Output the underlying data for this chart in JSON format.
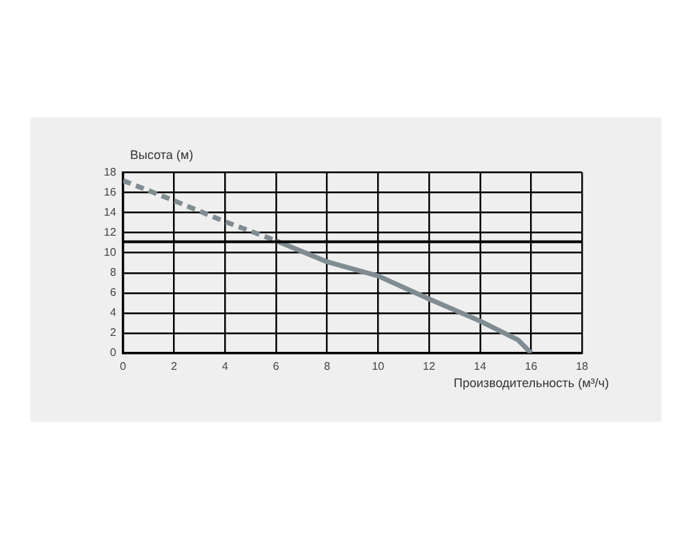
{
  "chart_data": {
    "type": "line",
    "xlabel": "Производительность (м³/ч)",
    "ylabel": "Высота (м)",
    "xlim": [
      0,
      18
    ],
    "xticks": [
      0,
      2,
      4,
      6,
      8,
      10,
      12,
      14,
      16,
      18
    ],
    "ylim": [
      0,
      18
    ],
    "yticks": [
      0,
      2,
      4,
      6,
      8,
      10,
      12,
      14,
      16,
      18
    ],
    "grid": true,
    "marker": "none",
    "series": [
      {
        "color": "#7f8c92",
        "line_style": "dashed",
        "x": [
          0,
          2,
          4,
          6
        ],
        "values": [
          17.2,
          15.2,
          13.1,
          11.2
        ]
      },
      {
        "color": "#7f8c92",
        "line_style": "solid",
        "x": [
          6,
          8,
          10,
          12,
          14,
          15.5,
          16
        ],
        "values": [
          11.2,
          9.1,
          7.7,
          5.4,
          3.2,
          1.3,
          0
        ]
      }
    ],
    "ref_lines": [
      {
        "axis": "y",
        "value": 11.1,
        "color": "#000000"
      }
    ]
  }
}
